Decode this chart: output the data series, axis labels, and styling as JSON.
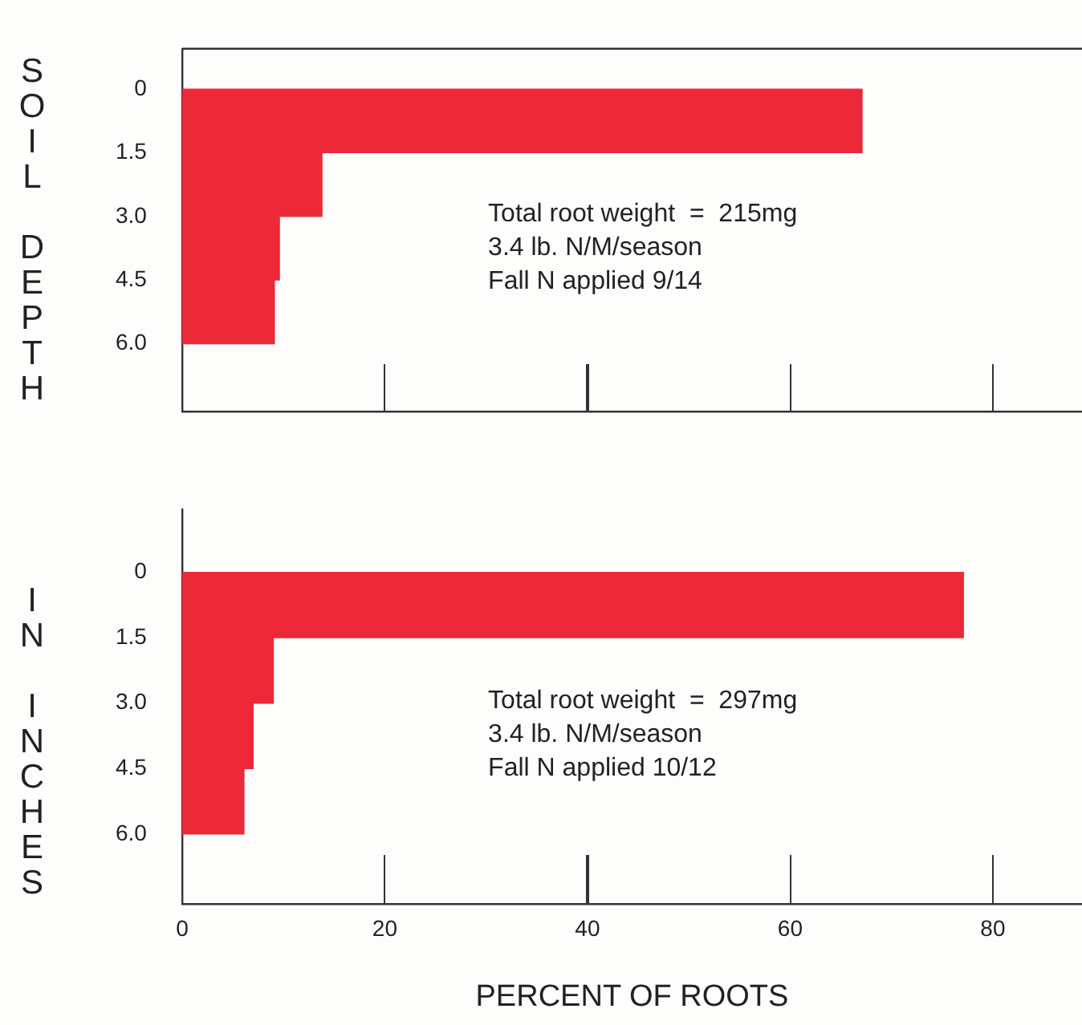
{
  "chart_data": [
    {
      "type": "histogram",
      "orientation": "horizontal",
      "ylabel": "SOIL DEPTH",
      "bins": [
        0,
        1.5,
        3.0,
        4.5,
        6.0
      ],
      "values": [
        67.1,
        13.8,
        9.6,
        9.1
      ],
      "color": "#ed2939",
      "xlim": [
        0,
        88.8
      ],
      "xticks": [
        0,
        20,
        40,
        60,
        80
      ],
      "ylim": [
        7.6,
        -0.95
      ],
      "yticks": [
        0,
        {
          "value": 1.5,
          "label": "1.5"
        },
        {
          "value": 3,
          "label": "3.0"
        },
        {
          "value": 4.5,
          "label": "4.5"
        },
        {
          "value": 6,
          "label": "6.0"
        }
      ],
      "tick_labels": "y",
      "grid": false,
      "annotations": [
        "Total root weight  =  215mg",
        "3.4 lb. N/M/season",
        "Fall N applied 9/14"
      ]
    },
    {
      "type": "histogram",
      "orientation": "horizontal",
      "ylabel": "IN INCHES",
      "xlabel": "PERCENT OF ROOTS",
      "bins": [
        0,
        1.5,
        3.0,
        4.5,
        6.0
      ],
      "values": [
        77.1,
        9.0,
        7.0,
        6.1
      ],
      "color": "#ed2939",
      "xlim": [
        0,
        88.8
      ],
      "xticks": [
        0,
        20,
        40,
        60,
        80
      ],
      "ylim": [
        7.6,
        -1.45
      ],
      "yticks": [
        0,
        {
          "value": 1.5,
          "label": "1.5"
        },
        {
          "value": 3,
          "label": "3.0"
        },
        {
          "value": 4.5,
          "label": "4.5"
        },
        {
          "value": 6,
          "label": "6.0"
        }
      ],
      "grid": false,
      "annotations": [
        "Total root weight  =  297mg",
        "3.4 lb. N/M/season",
        "Fall N applied 10/12"
      ]
    }
  ]
}
